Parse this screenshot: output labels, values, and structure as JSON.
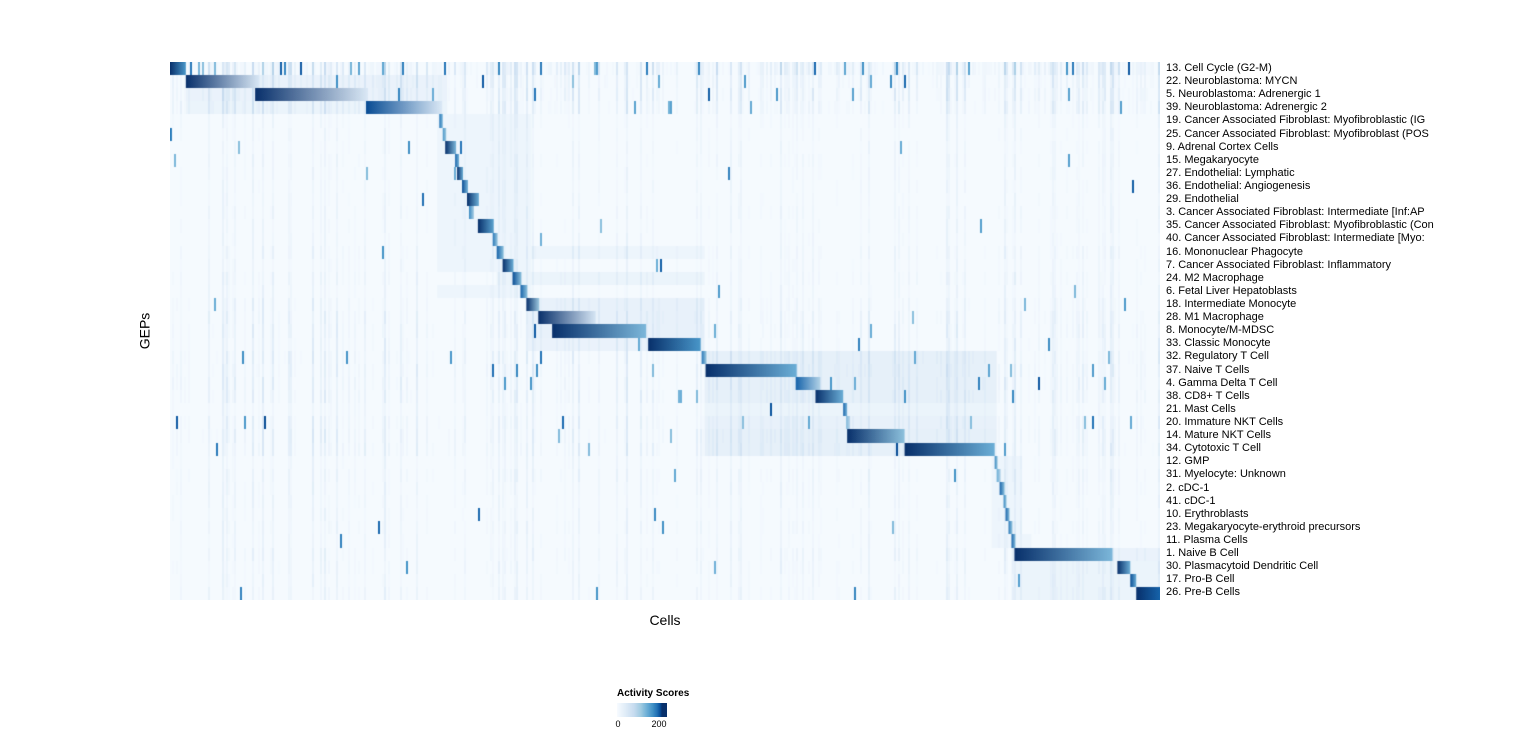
{
  "chart_data": {
    "type": "heatmap",
    "xlabel": "Cells",
    "ylabel": "GEPs",
    "colormap": "Blues",
    "colors": {
      "min": "#f7fbff",
      "max": "#08306b"
    },
    "legend": {
      "title": "Activity Scores",
      "tick_min": "0",
      "tick_max": "200",
      "range": [
        0,
        200
      ]
    },
    "rows": [
      {
        "label": "13. Cell Cycle (G2-M)",
        "block": [
          0.0,
          0.016
        ],
        "v0": 200,
        "v1": 150,
        "noise": 0.5,
        "band": null
      },
      {
        "label": "22. Neuroblastoma: MYCN",
        "block": [
          0.016,
          0.09
        ],
        "v0": 200,
        "v1": 35,
        "noise": 0.28,
        "band": [
          0.016,
          0.28,
          14
        ]
      },
      {
        "label": "5. Neuroblastoma: Adrenergic 1",
        "block": [
          0.086,
          0.2
        ],
        "v0": 200,
        "v1": 30,
        "noise": 0.28,
        "band": [
          0.016,
          0.28,
          14
        ]
      },
      {
        "label": "39. Neuroblastoma: Adrenergic 2",
        "block": [
          0.198,
          0.275
        ],
        "v0": 190,
        "v1": 30,
        "noise": 0.25,
        "band": [
          0.016,
          0.28,
          12
        ]
      },
      {
        "label": "19. Cancer Associated Fibroblast: Myofibroblastic (IG",
        "block": [
          0.272,
          0.2755
        ],
        "v0": 170,
        "v1": 120,
        "noise": 0.1,
        "band": [
          0.27,
          0.365,
          10
        ]
      },
      {
        "label": "25. Cancer Associated Fibroblast: Myofibroblast (POS",
        "block": [
          0.2755,
          0.279
        ],
        "v0": 150,
        "v1": 100,
        "noise": 0.09,
        "band": [
          0.27,
          0.365,
          10
        ]
      },
      {
        "label": "9. Adrenal Cortex Cells",
        "block": [
          0.278,
          0.289
        ],
        "v0": 200,
        "v1": 120,
        "noise": 0.09,
        "band": [
          0.27,
          0.365,
          10
        ]
      },
      {
        "label": "15. Megakaryocyte",
        "block": [
          0.288,
          0.292
        ],
        "v0": 180,
        "v1": 120,
        "noise": 0.1,
        "band": [
          0.27,
          0.365,
          10
        ]
      },
      {
        "label": "27. Endothelial: Lymphatic",
        "block": [
          0.29,
          0.296
        ],
        "v0": 200,
        "v1": 130,
        "noise": 0.09,
        "band": [
          0.27,
          0.365,
          10
        ]
      },
      {
        "label": "36. Endothelial: Angiogenesis",
        "block": [
          0.295,
          0.301
        ],
        "v0": 190,
        "v1": 120,
        "noise": 0.09,
        "band": [
          0.27,
          0.365,
          10
        ]
      },
      {
        "label": "29. Endothelial",
        "block": [
          0.3,
          0.312
        ],
        "v0": 200,
        "v1": 130,
        "noise": 0.09,
        "band": [
          0.27,
          0.365,
          10
        ]
      },
      {
        "label": "3. Cancer Associated Fibroblast: Intermediate [Inf:AP",
        "block": [
          0.302,
          0.307
        ],
        "v0": 160,
        "v1": 90,
        "noise": 0.1,
        "band": [
          0.27,
          0.365,
          10
        ]
      },
      {
        "label": "35. Cancer Associated Fibroblast: Myofibroblastic (Con",
        "block": [
          0.311,
          0.327
        ],
        "v0": 200,
        "v1": 140,
        "noise": 0.09,
        "band": [
          0.27,
          0.365,
          10
        ]
      },
      {
        "label": "40. Cancer Associated Fibroblast: Intermediate [Myo:",
        "block": [
          0.326,
          0.331
        ],
        "v0": 170,
        "v1": 100,
        "noise": 0.09,
        "band": [
          0.27,
          0.365,
          10
        ]
      },
      {
        "label": "16. Mononuclear Phagocyte",
        "block": [
          0.33,
          0.337
        ],
        "v0": 180,
        "v1": 110,
        "noise": 0.12,
        "band": [
          0.27,
          0.54,
          10
        ]
      },
      {
        "label": "7. Cancer Associated Fibroblast: Inflammatory",
        "block": [
          0.336,
          0.347
        ],
        "v0": 200,
        "v1": 130,
        "noise": 0.1,
        "band": [
          0.27,
          0.365,
          10
        ]
      },
      {
        "label": "24. M2 Macrophage",
        "block": [
          0.346,
          0.355
        ],
        "v0": 190,
        "v1": 110,
        "noise": 0.13,
        "band": [
          0.33,
          0.54,
          12
        ]
      },
      {
        "label": "6. Fetal Liver Hepatoblasts",
        "block": [
          0.354,
          0.361
        ],
        "v0": 180,
        "v1": 110,
        "noise": 0.1,
        "band": [
          0.27,
          0.365,
          10
        ]
      },
      {
        "label": "18. Intermediate Monocyte",
        "block": [
          0.36,
          0.373
        ],
        "v0": 200,
        "v1": 100,
        "noise": 0.15,
        "band": [
          0.36,
          0.54,
          16
        ]
      },
      {
        "label": "28. M1 Macrophage",
        "block": [
          0.372,
          0.43
        ],
        "v0": 200,
        "v1": 40,
        "noise": 0.17,
        "band": [
          0.36,
          0.54,
          16
        ]
      },
      {
        "label": "8. Monocyte/M-MDSC",
        "block": [
          0.386,
          0.481
        ],
        "v0": 200,
        "v1": 120,
        "noise": 0.18,
        "band": [
          0.36,
          0.54,
          16
        ]
      },
      {
        "label": "33. Classic Monocyte",
        "block": [
          0.483,
          0.536
        ],
        "v0": 200,
        "v1": 150,
        "noise": 0.15,
        "band": [
          0.36,
          0.54,
          14
        ]
      },
      {
        "label": "32. Regulatory T Cell",
        "block": [
          0.537,
          0.542
        ],
        "v0": 170,
        "v1": 100,
        "noise": 0.2,
        "band": [
          0.54,
          0.835,
          18
        ]
      },
      {
        "label": "37. Naive T Cells",
        "block": [
          0.541,
          0.633
        ],
        "v0": 200,
        "v1": 130,
        "noise": 0.2,
        "band": [
          0.54,
          0.835,
          18
        ]
      },
      {
        "label": "4. Gamma Delta T Cell",
        "block": [
          0.632,
          0.657
        ],
        "v0": 180,
        "v1": 80,
        "noise": 0.2,
        "band": [
          0.54,
          0.835,
          18
        ]
      },
      {
        "label": "38. CD8+ T Cells",
        "block": [
          0.652,
          0.68
        ],
        "v0": 200,
        "v1": 130,
        "noise": 0.2,
        "band": [
          0.54,
          0.835,
          18
        ]
      },
      {
        "label": "21. Mast Cells",
        "block": [
          0.68,
          0.684
        ],
        "v0": 180,
        "v1": 120,
        "noise": 0.12,
        "band": [
          0.54,
          0.835,
          12
        ]
      },
      {
        "label": "20. Immature NKT Cells",
        "block": [
          0.683,
          0.687
        ],
        "v0": 120,
        "v1": 70,
        "noise": 0.18,
        "band": [
          0.54,
          0.835,
          16
        ]
      },
      {
        "label": "14. Mature NKT Cells",
        "block": [
          0.684,
          0.742
        ],
        "v0": 200,
        "v1": 110,
        "noise": 0.2,
        "band": [
          0.54,
          0.835,
          18
        ]
      },
      {
        "label": "34. Cytotoxic T Cell",
        "block": [
          0.742,
          0.833
        ],
        "v0": 200,
        "v1": 130,
        "noise": 0.2,
        "band": [
          0.54,
          0.835,
          18
        ]
      },
      {
        "label": "12. GMP",
        "block": [
          0.833,
          0.836
        ],
        "v0": 160,
        "v1": 100,
        "noise": 0.1,
        "band": [
          0.83,
          0.86,
          10
        ]
      },
      {
        "label": "31. Myelocyte: Unknown",
        "block": [
          0.835,
          0.839
        ],
        "v0": 130,
        "v1": 80,
        "noise": 0.14,
        "band": [
          0.83,
          0.86,
          10
        ]
      },
      {
        "label": "2. cDC-1",
        "block": [
          0.838,
          0.843
        ],
        "v0": 180,
        "v1": 110,
        "noise": 0.12,
        "band": [
          0.83,
          0.86,
          10
        ]
      },
      {
        "label": "41. cDC-1",
        "block": [
          0.842,
          0.845
        ],
        "v0": 160,
        "v1": 100,
        "noise": 0.1,
        "band": [
          0.83,
          0.86,
          10
        ]
      },
      {
        "label": "10. Erythroblasts",
        "block": [
          0.844,
          0.848
        ],
        "v0": 180,
        "v1": 110,
        "noise": 0.1,
        "band": [
          0.83,
          0.86,
          10
        ]
      },
      {
        "label": "23. Megakaryocyte-erythroid precursors",
        "block": [
          0.847,
          0.851
        ],
        "v0": 170,
        "v1": 100,
        "noise": 0.12,
        "band": [
          0.83,
          0.86,
          10
        ]
      },
      {
        "label": "11. Plasma Cells",
        "block": [
          0.85,
          0.854
        ],
        "v0": 180,
        "v1": 110,
        "noise": 0.1,
        "band": [
          0.83,
          0.87,
          10
        ]
      },
      {
        "label": "1. Naive B Cell",
        "block": [
          0.853,
          0.952
        ],
        "v0": 200,
        "v1": 120,
        "noise": 0.14,
        "band": [
          0.85,
          1.0,
          14
        ]
      },
      {
        "label": "30. Plasmacytoid Dendritic Cell",
        "block": [
          0.957,
          0.97
        ],
        "v0": 200,
        "v1": 130,
        "noise": 0.12,
        "band": [
          0.85,
          1.0,
          12
        ]
      },
      {
        "label": "17. Pro-B Cell",
        "block": [
          0.97,
          0.976
        ],
        "v0": 190,
        "v1": 130,
        "noise": 0.1,
        "band": [
          0.85,
          1.0,
          12
        ]
      },
      {
        "label": "26. Pre-B Cells",
        "block": [
          0.976,
          1.0
        ],
        "v0": 200,
        "v1": 180,
        "noise": 0.12,
        "band": [
          0.85,
          1.0,
          12
        ]
      }
    ]
  }
}
